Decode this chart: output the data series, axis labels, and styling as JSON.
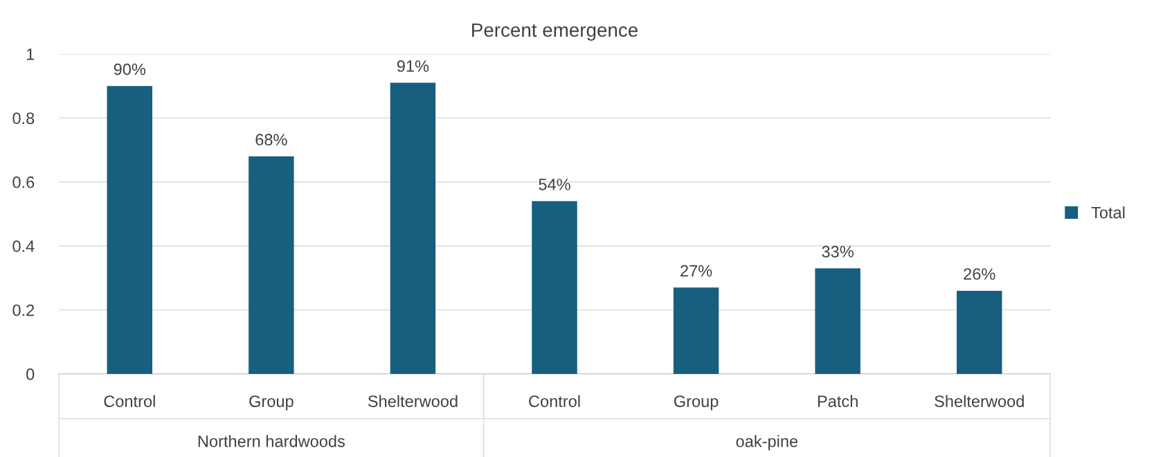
{
  "chart_data": {
    "type": "bar",
    "title": "Percent emergence",
    "categories": [
      "Control",
      "Group",
      "Shelterwood",
      "Control",
      "Group",
      "Patch",
      "Shelterwood"
    ],
    "series": [
      {
        "name": "Total",
        "color": "#175e7f",
        "values": [
          0.9,
          0.68,
          0.91,
          0.54,
          0.27,
          0.33,
          0.26
        ],
        "value_labels": [
          "90%",
          "68%",
          "91%",
          "54%",
          "27%",
          "33%",
          "26%"
        ]
      }
    ],
    "annotations": [
      "Northern hardwoods",
      "oak-pine"
    ],
    "ylim": [
      0,
      1
    ],
    "yticks": [
      0,
      0.2,
      0.4,
      0.6,
      0.8,
      1
    ],
    "grid": "y",
    "legend": "right"
  }
}
